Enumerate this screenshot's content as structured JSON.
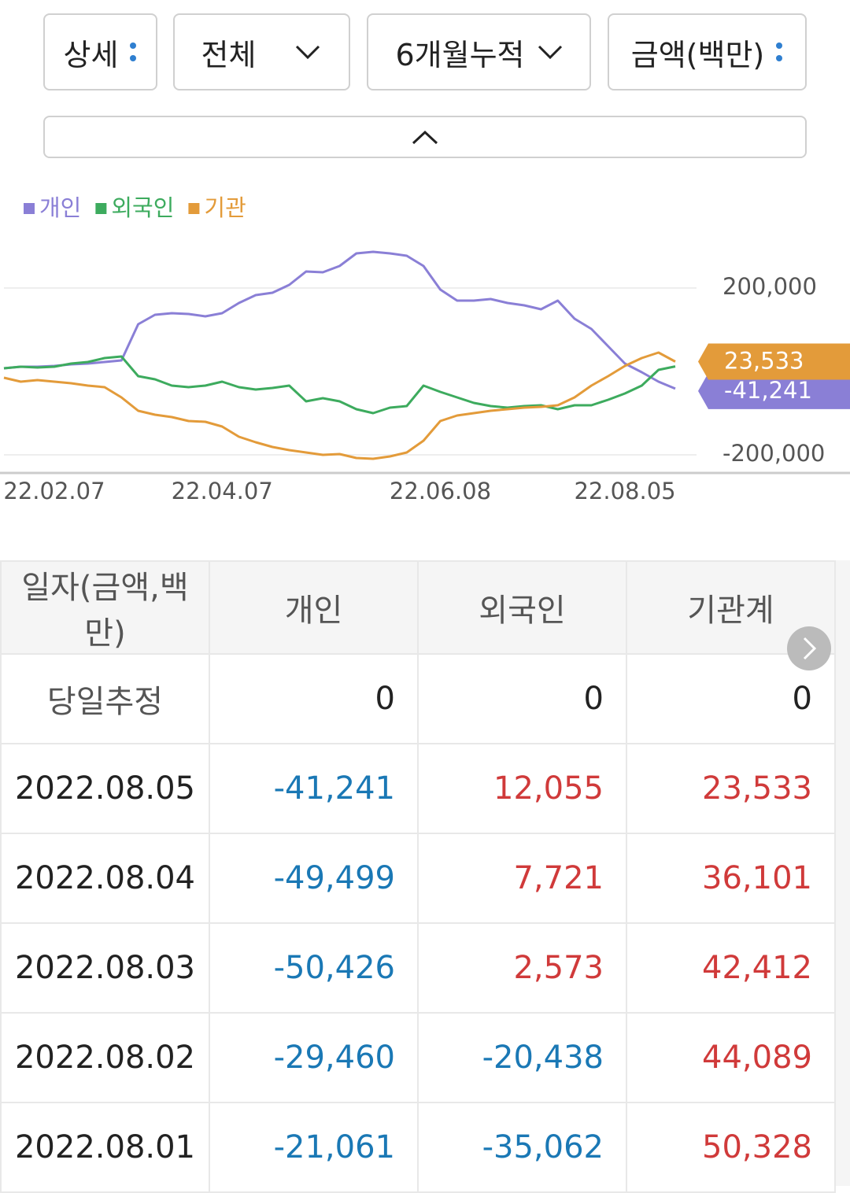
{
  "controls": {
    "detail": "상세",
    "scope": "전체",
    "period": "6개월누적",
    "unit": "금액(백만)"
  },
  "chart_data": {
    "type": "line",
    "x": [
      null,
      null,
      null,
      "22.02.07",
      null,
      null,
      null,
      null,
      null,
      null,
      null,
      null,
      null,
      "22.04.07",
      null,
      null,
      null,
      null,
      null,
      null,
      null,
      null,
      null,
      null,
      null,
      null,
      "22.06.08",
      null,
      null,
      null,
      null,
      null,
      null,
      null,
      null,
      null,
      null,
      "22.08.05",
      null,
      null,
      null
    ],
    "ylim": [
      -240000,
      320000
    ],
    "yticks": [
      {
        "value": 200000,
        "label": "200,000"
      },
      {
        "value": -200000,
        "label": "-200,000"
      }
    ],
    "grid": true,
    "series": [
      {
        "name": "개인",
        "color": "#8a7fd6",
        "values": [
          7500,
          11300,
          11300,
          13200,
          17000,
          18900,
          22600,
          26400,
          113200,
          135800,
          139600,
          137700,
          132100,
          139600,
          164200,
          183000,
          188700,
          207500,
          239600,
          237700,
          252800,
          283000,
          286800,
          283000,
          277400,
          252800,
          196200,
          169800,
          169800,
          173600,
          164200,
          158500,
          149100,
          169800,
          126400,
          101900,
          60400,
          18900,
          -1900,
          -24500,
          -41241
        ],
        "value_labels": [
          null,
          null,
          null,
          null,
          null,
          null,
          null,
          null,
          null,
          null,
          null,
          null,
          null,
          null,
          null,
          null,
          null,
          null,
          null,
          null,
          null,
          null,
          null,
          null,
          null,
          null,
          null,
          null,
          null,
          null,
          null,
          null,
          null,
          null,
          null,
          null,
          null,
          null,
          null,
          null,
          "-41,241"
        ]
      },
      {
        "name": "외국인",
        "color": "#3dab5e",
        "values": [
          7500,
          11300,
          9400,
          11300,
          18900,
          22600,
          32100,
          35800,
          -11300,
          -18900,
          -34000,
          -37700,
          -34000,
          -24500,
          -37700,
          -43400,
          -39600,
          -34000,
          -71700,
          -64200,
          -71700,
          -90600,
          -100000,
          -86800,
          -83000,
          -34000,
          -49100,
          -62300,
          -75500,
          -83000,
          -86800,
          -83000,
          -81100,
          -90600,
          -81100,
          -81100,
          -67900,
          -52800,
          -34000,
          3800,
          12055
        ]
      },
      {
        "name": "기관",
        "color": "#e39b3a",
        "values": [
          -15100,
          -24500,
          -20800,
          -24500,
          -28300,
          -34000,
          -37700,
          -62300,
          -94300,
          -103800,
          -109400,
          -118900,
          -120800,
          -132100,
          -156600,
          -169800,
          -181100,
          -188700,
          -194300,
          -200000,
          -198100,
          -207500,
          -209400,
          -203800,
          -194300,
          -166000,
          -118900,
          -105700,
          -100000,
          -94300,
          -90600,
          -86800,
          -84900,
          -81100,
          -62300,
          -34000,
          -11300,
          13200,
          32100,
          45300,
          23533
        ],
        "value_labels": [
          null,
          null,
          null,
          null,
          null,
          null,
          null,
          null,
          null,
          null,
          null,
          null,
          null,
          null,
          null,
          null,
          null,
          null,
          null,
          null,
          null,
          null,
          null,
          null,
          null,
          null,
          null,
          null,
          null,
          null,
          null,
          null,
          null,
          null,
          null,
          null,
          null,
          null,
          null,
          null,
          "23,533"
        ]
      }
    ]
  },
  "table": {
    "headers": [
      "일자(금액,백만)",
      "개인",
      "외국인",
      "기관계"
    ],
    "rows": [
      [
        "당일추정",
        "0",
        "0",
        "0"
      ],
      [
        "2022.08.05",
        "-41,241",
        "12,055",
        "23,533"
      ],
      [
        "2022.08.04",
        "-49,499",
        "7,721",
        "36,101"
      ],
      [
        "2022.08.03",
        "-50,426",
        "2,573",
        "42,412"
      ],
      [
        "2022.08.02",
        "-29,460",
        "-20,438",
        "44,089"
      ],
      [
        "2022.08.01",
        "-21,061",
        "-35,062",
        "50,328"
      ]
    ]
  }
}
